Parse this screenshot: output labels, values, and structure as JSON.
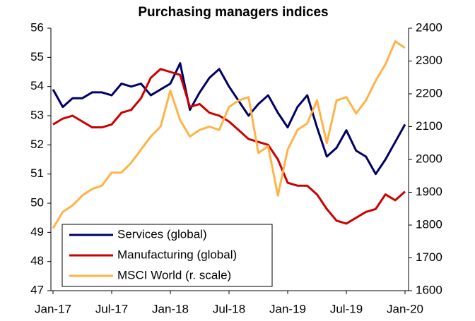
{
  "chart_data": {
    "type": "line",
    "title": "Purchasing managers indices",
    "categories": [
      "Jan-17",
      null,
      null,
      null,
      null,
      null,
      "Jul-17",
      null,
      null,
      null,
      null,
      null,
      "Jan-18",
      null,
      null,
      null,
      null,
      null,
      "Jul-18",
      null,
      null,
      null,
      null,
      null,
      "Jan-19",
      null,
      null,
      null,
      null,
      null,
      "Jul-19",
      null,
      null,
      null,
      null,
      null,
      "Jan-20"
    ],
    "series": [
      {
        "name": "Services (global)",
        "color": "#000066",
        "values": [
          53.9,
          53.3,
          53.6,
          53.6,
          53.8,
          53.8,
          53.7,
          54.1,
          54.0,
          54.1,
          53.7,
          53.9,
          54.1,
          54.8,
          53.2,
          53.8,
          54.3,
          54.6,
          54.0,
          53.5,
          53.0,
          53.4,
          53.7,
          53.1,
          52.6,
          53.3,
          53.7,
          52.6,
          51.6,
          51.9,
          52.5,
          51.8,
          51.6,
          51.0,
          51.5,
          52.1,
          52.7
        ]
      },
      {
        "name": "Manufacturing (global)",
        "color": "#cc0000",
        "values": [
          52.7,
          52.9,
          53.0,
          52.8,
          52.6,
          52.6,
          52.7,
          53.1,
          53.2,
          53.6,
          54.3,
          54.6,
          54.5,
          54.4,
          53.3,
          53.4,
          53.1,
          53.0,
          52.8,
          52.5,
          52.2,
          52.1,
          52.0,
          51.5,
          50.7,
          50.6,
          50.6,
          50.3,
          49.8,
          49.4,
          49.3,
          49.5,
          49.7,
          49.8,
          50.3,
          50.1,
          50.4
        ]
      },
      {
        "name": "MSCI World (r. scale)",
        "color": "#ffb347",
        "axis": "y2",
        "values": [
          1790,
          1840,
          1860,
          1890,
          1910,
          1920,
          1960,
          1960,
          1990,
          2030,
          2070,
          2100,
          2210,
          2120,
          2070,
          2090,
          2100,
          2090,
          2160,
          2180,
          2190,
          2020,
          2040,
          1890,
          2030,
          2090,
          2110,
          2180,
          2050,
          2180,
          2190,
          2140,
          2180,
          2240,
          2290,
          2360,
          2340
        ]
      }
    ],
    "ylim": [
      47,
      56
    ],
    "yticks": [
      47,
      48,
      49,
      50,
      51,
      52,
      53,
      54,
      55,
      56
    ],
    "y2lim": [
      1600,
      2400
    ],
    "y2ticks": [
      1600,
      1700,
      1800,
      1900,
      2000,
      2100,
      2200,
      2300,
      2400
    ],
    "grid": false,
    "legend": "lower left"
  }
}
